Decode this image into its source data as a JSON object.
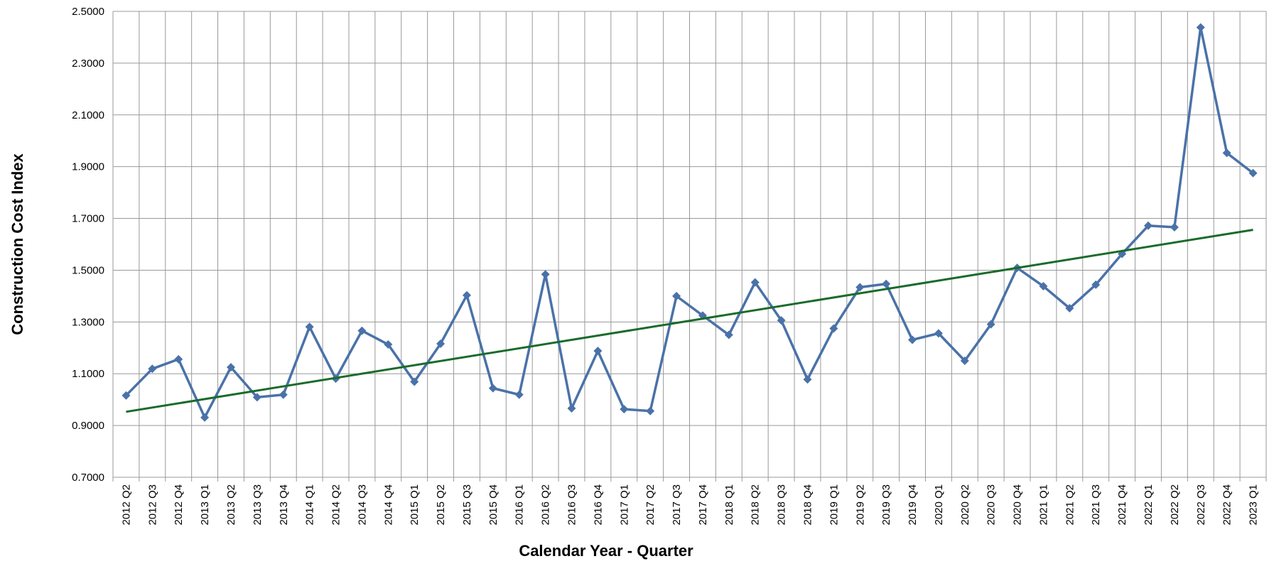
{
  "chart_data": {
    "type": "line",
    "x_label": "Calendar Year - Quarter",
    "y_label": "Construction Cost Index",
    "categories": [
      "2012 Q2",
      "2012 Q3",
      "2012 Q4",
      "2013 Q1",
      "2013 Q2",
      "2013 Q3",
      "2013 Q4",
      "2014 Q1",
      "2014 Q2",
      "2014 Q3",
      "2014 Q4",
      "2015 Q1",
      "2015 Q2",
      "2015 Q3",
      "2015 Q4",
      "2016 Q1",
      "2016 Q2",
      "2016 Q3",
      "2016 Q4",
      "2017 Q1",
      "2017 Q2",
      "2017 Q3",
      "2017 Q4",
      "2018 Q1",
      "2018 Q2",
      "2018 Q3",
      "2018 Q4",
      "2019 Q1",
      "2019 Q2",
      "2019 Q3",
      "2019 Q4",
      "2020 Q1",
      "2020 Q2",
      "2020 Q3",
      "2020 Q4",
      "2021 Q1",
      "2021 Q2",
      "2021 Q3",
      "2021 Q4",
      "2022 Q1",
      "2022 Q2",
      "2022 Q3",
      "2022 Q4",
      "2023 Q1"
    ],
    "series": [
      {
        "color": "#4a72a8",
        "values": [
          1.016,
          1.119,
          1.156,
          0.931,
          1.125,
          1.009,
          1.019,
          1.281,
          1.081,
          1.266,
          1.213,
          1.069,
          1.216,
          1.403,
          1.044,
          1.019,
          1.484,
          0.966,
          1.188,
          0.963,
          0.956,
          1.4,
          1.325,
          1.25,
          1.453,
          1.306,
          1.078,
          1.275,
          1.434,
          1.447,
          1.231,
          1.256,
          1.15,
          1.291,
          1.509,
          1.438,
          1.353,
          1.444,
          1.563,
          1.672,
          1.666,
          2.438,
          1.953,
          1.875
        ]
      }
    ],
    "trendline": {
      "color": "#1a6b2a",
      "values": [
        0.953,
        1.656
      ]
    },
    "ylim": [
      0.7,
      2.5
    ],
    "yticks": [
      {
        "value": 0.7,
        "label": "0.7000"
      },
      {
        "value": 0.9,
        "label": "0.9000"
      },
      {
        "value": 1.1,
        "label": "1.1000"
      },
      {
        "value": 1.3,
        "label": "1.3000"
      },
      {
        "value": 1.5,
        "label": "1.5000"
      },
      {
        "value": 1.7,
        "label": "1.7000"
      },
      {
        "value": 1.9,
        "label": "1.9000"
      },
      {
        "value": 2.1,
        "label": "2.1000"
      },
      {
        "value": 2.3,
        "label": "2.3000"
      },
      {
        "value": 2.5,
        "label": "2.5000"
      }
    ],
    "grid": true
  }
}
